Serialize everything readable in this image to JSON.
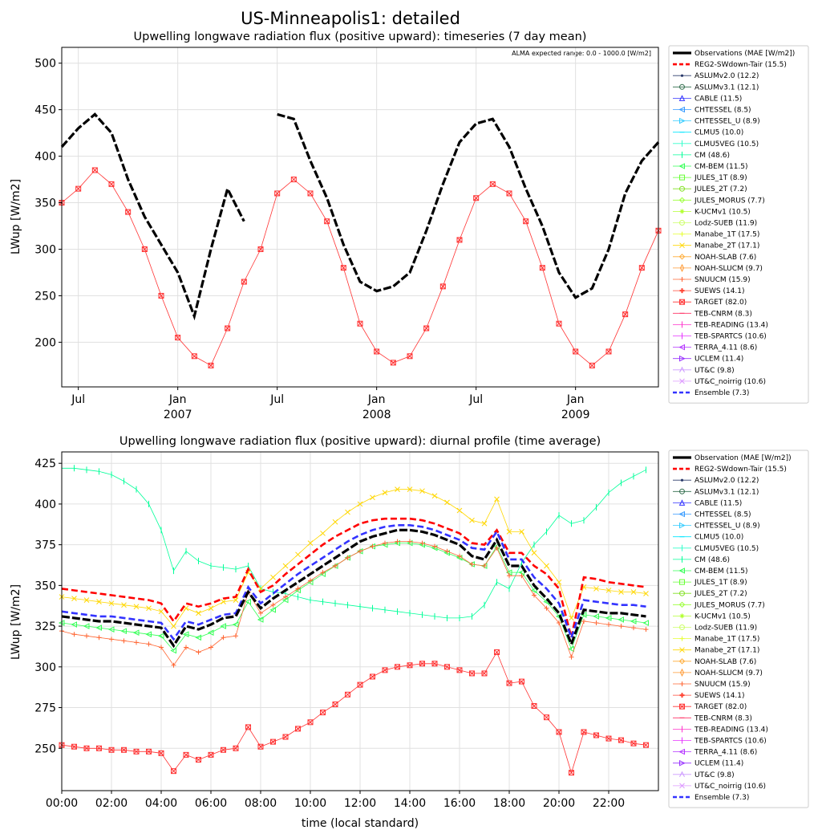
{
  "title": "US-Minneapolis1: detailed",
  "note": "ALMA expected range: 0.0 - 1000.0 [W/m2]",
  "chart_data": [
    {
      "type": "line",
      "title": "Upwelling longwave radiation flux (positive upward): timeseries (7 day mean)",
      "xlabel": "",
      "ylabel": "LWup [W/m2]",
      "ylim": [
        152,
        517
      ],
      "yticks": [
        200,
        250,
        300,
        350,
        400,
        450,
        500
      ],
      "xlim": [
        0,
        36
      ],
      "xticks": [
        {
          "x": 1,
          "label": "Jul",
          "year": ""
        },
        {
          "x": 7,
          "label": "Jan",
          "year": "2007"
        },
        {
          "x": 13,
          "label": "Jul",
          "year": ""
        },
        {
          "x": 19,
          "label": "Jan",
          "year": "2008"
        },
        {
          "x": 25,
          "label": "Jul",
          "year": ""
        },
        {
          "x": 31,
          "label": "Jan",
          "year": "2009"
        }
      ],
      "grid": true,
      "legend_position": "outside-right",
      "legend_title": "Observations (MAE [W/m2])",
      "x": [
        0,
        1,
        2,
        3,
        4,
        5,
        6,
        7,
        8,
        9,
        10,
        11,
        12,
        13,
        14,
        15,
        16,
        17,
        18,
        19,
        20,
        21,
        22,
        23,
        24,
        25,
        26,
        27,
        28,
        29,
        30,
        31,
        32,
        33,
        34,
        35,
        36
      ],
      "x_units": "months since 2006-06",
      "series": [
        {
          "name": "Observations",
          "values": [
            410,
            430,
            445,
            425,
            375,
            335,
            305,
            275,
            228,
            300,
            365,
            330,
            null,
            445,
            440,
            395,
            355,
            305,
            265,
            255,
            260,
            275,
            320,
            370,
            415,
            435,
            440,
            410,
            365,
            325,
            275,
            248,
            258,
            300,
            360,
            395,
            415
          ]
        },
        {
          "name": "TARGET",
          "values": [
            350,
            365,
            385,
            370,
            340,
            300,
            250,
            205,
            185,
            175,
            215,
            265,
            300,
            360,
            375,
            360,
            330,
            280,
            220,
            190,
            178,
            185,
            215,
            260,
            310,
            355,
            370,
            360,
            330,
            280,
            220,
            190,
            175,
            190,
            230,
            280,
            320
          ]
        }
      ]
    },
    {
      "type": "line",
      "title": "Upwelling longwave radiation flux (positive upward): diurnal profile (time average)",
      "xlabel": "time (local standard)",
      "ylabel": "LWup [W/m2]",
      "ylim": [
        224,
        432
      ],
      "yticks": [
        250,
        275,
        300,
        325,
        350,
        375,
        400,
        425
      ],
      "xlim": [
        0,
        24
      ],
      "xticks": [
        "00:00",
        "02:00",
        "04:00",
        "06:00",
        "08:00",
        "10:00",
        "12:00",
        "14:00",
        "16:00",
        "18:00",
        "20:00",
        "22:00"
      ],
      "grid": true,
      "legend_position": "outside-right",
      "legend_title": "Observation (MAE [W/m2])",
      "x": [
        0,
        0.5,
        1,
        1.5,
        2,
        2.5,
        3,
        3.5,
        4,
        4.5,
        5,
        5.5,
        6,
        6.5,
        7,
        7.5,
        8,
        8.5,
        9,
        9.5,
        10,
        10.5,
        11,
        11.5,
        12,
        12.5,
        13,
        13.5,
        14,
        14.5,
        15,
        15.5,
        16,
        16.5,
        17,
        17.5,
        18,
        18.5,
        19,
        19.5,
        20,
        20.5,
        21,
        21.5,
        22,
        22.5,
        23,
        23.5
      ],
      "series": [
        {
          "name": "Observation",
          "values": [
            331,
            330,
            329,
            328,
            328,
            327,
            326,
            325,
            324,
            313,
            325,
            323,
            326,
            330,
            331,
            346,
            336,
            342,
            347,
            352,
            357,
            362,
            367,
            372,
            377,
            380,
            382,
            384,
            384,
            383,
            381,
            378,
            375,
            368,
            366,
            378,
            362,
            362,
            350,
            342,
            333,
            314,
            335,
            334,
            333,
            333,
            332,
            331
          ]
        },
        {
          "name": "TARGET",
          "values": [
            252,
            251,
            250,
            250,
            249,
            249,
            248,
            248,
            247,
            236,
            246,
            243,
            246,
            249,
            250,
            263,
            251,
            254,
            257,
            262,
            266,
            272,
            277,
            283,
            289,
            294,
            298,
            300,
            301,
            302,
            302,
            300,
            298,
            296,
            296,
            309,
            290,
            291,
            276,
            269,
            260,
            235,
            260,
            258,
            256,
            255,
            253,
            252
          ]
        },
        {
          "name": "CM",
          "values": [
            422,
            422,
            421,
            420,
            418,
            414,
            409,
            400,
            384,
            359,
            371,
            365,
            362,
            361,
            360,
            362,
            348,
            346,
            345,
            343,
            341,
            340,
            339,
            338,
            337,
            336,
            335,
            334,
            333,
            332,
            331,
            330,
            330,
            331,
            338,
            352,
            348,
            364,
            375,
            383,
            393,
            388,
            390,
            398,
            407,
            413,
            417,
            421
          ]
        },
        {
          "name": "Manabe_2T",
          "values": [
            343,
            342,
            341,
            340,
            339,
            338,
            337,
            336,
            334,
            325,
            336,
            333,
            336,
            340,
            341,
            358,
            348,
            355,
            362,
            369,
            376,
            382,
            389,
            395,
            400,
            404,
            407,
            409,
            409,
            408,
            405,
            401,
            396,
            390,
            388,
            403,
            383,
            383,
            370,
            362,
            352,
            330,
            349,
            348,
            347,
            346,
            346,
            345
          ]
        },
        {
          "name": "REG2-SWdown-Tair",
          "values": [
            348,
            347,
            346,
            345,
            344,
            343,
            342,
            341,
            339,
            328,
            339,
            337,
            339,
            342,
            343,
            360,
            346,
            350,
            357,
            363,
            369,
            375,
            380,
            384,
            388,
            390,
            391,
            391,
            391,
            390,
            388,
            385,
            382,
            376,
            375,
            384,
            370,
            370,
            362,
            357,
            348,
            318,
            355,
            354,
            352,
            351,
            350,
            349
          ]
        },
        {
          "name": "CM-BEM",
          "values": [
            327,
            326,
            325,
            324,
            323,
            322,
            321,
            320,
            319,
            310,
            320,
            318,
            321,
            325,
            326,
            340,
            329,
            335,
            341,
            347,
            352,
            357,
            362,
            367,
            371,
            374,
            375,
            376,
            376,
            375,
            373,
            370,
            367,
            363,
            362,
            374,
            358,
            358,
            347,
            340,
            331,
            311,
            332,
            331,
            330,
            329,
            328,
            327
          ]
        },
        {
          "name": "SNUUCM",
          "values": [
            322,
            320,
            319,
            318,
            317,
            316,
            315,
            314,
            312,
            301,
            312,
            309,
            312,
            318,
            319,
            346,
            333,
            338,
            343,
            348,
            353,
            358,
            362,
            367,
            371,
            374,
            376,
            377,
            377,
            376,
            374,
            371,
            368,
            363,
            362,
            373,
            356,
            356,
            344,
            336,
            327,
            306,
            328,
            327,
            326,
            325,
            324,
            323
          ]
        },
        {
          "name": "Ensemble",
          "values": [
            334,
            333,
            332,
            331,
            331,
            330,
            329,
            328,
            327,
            317,
            328,
            326,
            329,
            332,
            333,
            349,
            339,
            345,
            351,
            357,
            362,
            367,
            372,
            377,
            381,
            384,
            386,
            387,
            387,
            386,
            384,
            381,
            378,
            373,
            372,
            383,
            366,
            366,
            355,
            348,
            339,
            318,
            341,
            340,
            339,
            338,
            338,
            337
          ]
        }
      ]
    }
  ],
  "legend": [
    {
      "label": "Observations (MAE [W/m2])",
      "color": "#000000",
      "marker": "none",
      "dash": false
    },
    {
      "label": "REG2-SWdown-Tair (15.5)",
      "color": "#ff0000",
      "marker": "none",
      "dash": true
    },
    {
      "label": "ASLUMv2.0 (12.2)",
      "color": "#2a3a6a",
      "marker": "dot",
      "dash": false
    },
    {
      "label": "ASLUMv3.1 (12.1)",
      "color": "#2e6b4a",
      "marker": "circle",
      "dash": false
    },
    {
      "label": "CABLE (11.5)",
      "color": "#3333ff",
      "marker": "triangle-up",
      "dash": false
    },
    {
      "label": "CHTESSEL (8.5)",
      "color": "#3399ff",
      "marker": "triangle-left",
      "dash": false
    },
    {
      "label": "CHTESSEL_U (8.9)",
      "color": "#33ccff",
      "marker": "triangle-right",
      "dash": false
    },
    {
      "label": "CLMU5 (10.0)",
      "color": "#00e5ff",
      "marker": "hline",
      "dash": false
    },
    {
      "label": "CLMU5VEG (10.5)",
      "color": "#33ffcc",
      "marker": "vline",
      "dash": false
    },
    {
      "label": "CM (48.6)",
      "color": "#00ff99",
      "marker": "vline",
      "dash": false
    },
    {
      "label": "CM-BEM (11.5)",
      "color": "#33ff55",
      "marker": "triangle-left",
      "dash": false
    },
    {
      "label": "JULES_1T (8.9)",
      "color": "#66ff33",
      "marker": "square",
      "dash": false
    },
    {
      "label": "JULES_2T (7.2)",
      "color": "#80e020",
      "marker": "circle",
      "dash": false
    },
    {
      "label": "JULES_MORUS (7.7)",
      "color": "#99ff33",
      "marker": "diamond",
      "dash": false
    },
    {
      "label": "K-UCMv1 (10.5)",
      "color": "#b3ff33",
      "marker": "star",
      "dash": false
    },
    {
      "label": "Lodz-SUEB (11.9)",
      "color": "#ccff66",
      "marker": "circle",
      "dash": false
    },
    {
      "label": "Manabe_1T (17.5)",
      "color": "#e6ff33",
      "marker": "plus",
      "dash": false
    },
    {
      "label": "Manabe_2T (17.1)",
      "color": "#ffd700",
      "marker": "x",
      "dash": false
    },
    {
      "label": "NOAH-SLAB (7.6)",
      "color": "#ffaa33",
      "marker": "diamond",
      "dash": false
    },
    {
      "label": "NOAH-SLUCM (9.7)",
      "color": "#ff9933",
      "marker": "thin-diamond",
      "dash": false
    },
    {
      "label": "SNUUCM (15.9)",
      "color": "#ff6633",
      "marker": "plus",
      "dash": false
    },
    {
      "label": "SUEWS (14.1)",
      "color": "#ff4433",
      "marker": "plus-filled",
      "dash": false
    },
    {
      "label": "TARGET (82.0)",
      "color": "#ff3333",
      "marker": "square-x",
      "dash": false
    },
    {
      "label": "TEB-CNRM (8.3)",
      "color": "#ff3366",
      "marker": "hline",
      "dash": false
    },
    {
      "label": "TEB-READING (13.4)",
      "color": "#ff33cc",
      "marker": "vline",
      "dash": false
    },
    {
      "label": "TEB-SPARTCS (10.6)",
      "color": "#e633ff",
      "marker": "vline",
      "dash": false
    },
    {
      "label": "TERRA_4.11 (8.6)",
      "color": "#b333ff",
      "marker": "triangle-left",
      "dash": false
    },
    {
      "label": "UCLEM (11.4)",
      "color": "#9933ff",
      "marker": "triangle-right",
      "dash": false
    },
    {
      "label": "UT&C (9.8)",
      "color": "#cc99ff",
      "marker": "caret-up",
      "dash": false
    },
    {
      "label": "UT&C_noirrig (10.6)",
      "color": "#dd99ff",
      "marker": "x",
      "dash": false
    },
    {
      "label": "Ensemble (7.3)",
      "color": "#3333ff",
      "marker": "none",
      "dash": true
    }
  ],
  "legend2_title": "Observation (MAE [W/m2])"
}
